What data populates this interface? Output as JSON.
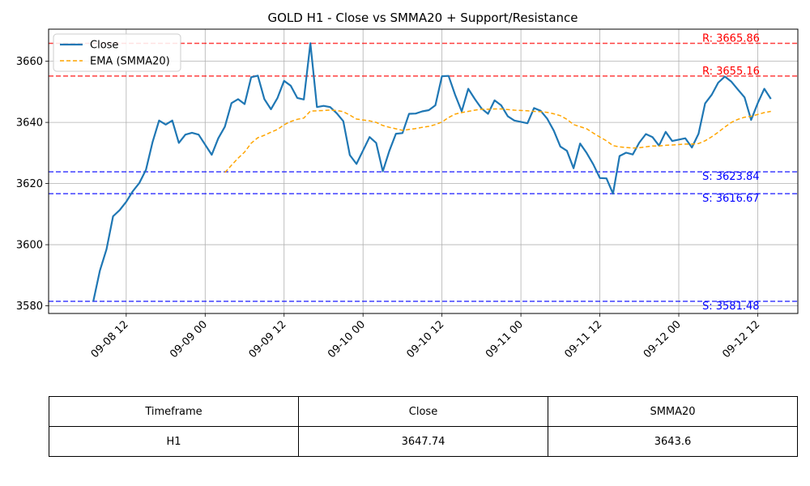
{
  "chart_data": {
    "type": "line",
    "title": "GOLD H1 - Close vs SMMA20 + Support/Resistance",
    "xlabel": "",
    "ylabel": "",
    "ylim": [
      3577.5,
      3670.5
    ],
    "xlim": [
      "2025-09-08 00:12",
      "2025-09-12 18:06"
    ],
    "grid": true,
    "legend_location": "upper-left",
    "x_ticks": [
      "09-08 12",
      "09-09 00",
      "09-09 12",
      "09-10 00",
      "09-10 12",
      "09-11 00",
      "09-11 12",
      "09-12 00",
      "09-12 12"
    ],
    "y_ticks": [
      3580,
      3600,
      3620,
      3640,
      3660
    ],
    "series": [
      {
        "name": "Close",
        "color": "#1f77b4",
        "style": "solid",
        "points": [
          [
            "2025-09-08 07:00",
            3581.5
          ],
          [
            "2025-09-08 08:00",
            3591.5
          ],
          [
            "2025-09-08 09:00",
            3598.5
          ],
          [
            "2025-09-08 10:00",
            3609.3
          ],
          [
            "2025-09-08 11:00",
            3611.3
          ],
          [
            "2025-09-08 12:00",
            3614.0
          ],
          [
            "2025-09-08 13:00",
            3617.5
          ],
          [
            "2025-09-08 14:00",
            3620.2
          ],
          [
            "2025-09-08 15:00",
            3624.5
          ],
          [
            "2025-09-08 16:00",
            3633.5
          ],
          [
            "2025-09-08 17:00",
            3640.6
          ],
          [
            "2025-09-08 18:00",
            3639.3
          ],
          [
            "2025-09-08 19:00",
            3640.6
          ],
          [
            "2025-09-08 20:00",
            3633.3
          ],
          [
            "2025-09-08 21:00",
            3636.0
          ],
          [
            "2025-09-08 22:00",
            3636.6
          ],
          [
            "2025-09-08 23:00",
            3636.0
          ],
          [
            "2025-09-09 01:00",
            3629.4
          ],
          [
            "2025-09-09 02:00",
            3634.8
          ],
          [
            "2025-09-09 03:00",
            3638.6
          ],
          [
            "2025-09-09 04:00",
            3646.3
          ],
          [
            "2025-09-09 05:00",
            3647.6
          ],
          [
            "2025-09-09 06:00",
            3646.0
          ],
          [
            "2025-09-09 07:00",
            3654.8
          ],
          [
            "2025-09-09 08:00",
            3655.3
          ],
          [
            "2025-09-09 09:00",
            3647.6
          ],
          [
            "2025-09-09 10:00",
            3644.3
          ],
          [
            "2025-09-09 11:00",
            3648.0
          ],
          [
            "2025-09-09 12:00",
            3653.6
          ],
          [
            "2025-09-09 13:00",
            3652.0
          ],
          [
            "2025-09-09 14:00",
            3648.0
          ],
          [
            "2025-09-09 15:00",
            3647.5
          ],
          [
            "2025-09-09 16:00",
            3665.9
          ],
          [
            "2025-09-09 17:00",
            3645.0
          ],
          [
            "2025-09-09 18:00",
            3645.4
          ],
          [
            "2025-09-09 19:00",
            3645.0
          ],
          [
            "2025-09-09 20:00",
            3643.0
          ],
          [
            "2025-09-09 21:00",
            3640.4
          ],
          [
            "2025-09-09 22:00",
            3629.3
          ],
          [
            "2025-09-09 23:00",
            3626.4
          ],
          [
            "2025-09-10 01:00",
            3635.2
          ],
          [
            "2025-09-10 02:00",
            3633.3
          ],
          [
            "2025-09-10 03:00",
            3624.0
          ],
          [
            "2025-09-10 04:00",
            3630.7
          ],
          [
            "2025-09-10 05:00",
            3636.3
          ],
          [
            "2025-09-10 06:00",
            3636.5
          ],
          [
            "2025-09-10 07:00",
            3642.8
          ],
          [
            "2025-09-10 08:00",
            3642.9
          ],
          [
            "2025-09-10 09:00",
            3643.6
          ],
          [
            "2025-09-10 10:00",
            3644.0
          ],
          [
            "2025-09-10 11:00",
            3645.6
          ],
          [
            "2025-09-10 12:00",
            3655.1
          ],
          [
            "2025-09-10 13:00",
            3655.2
          ],
          [
            "2025-09-10 14:00",
            3649.0
          ],
          [
            "2025-09-10 15:00",
            3643.6
          ],
          [
            "2025-09-10 16:00",
            3651.0
          ],
          [
            "2025-09-10 17:00",
            3647.6
          ],
          [
            "2025-09-10 18:00",
            3644.6
          ],
          [
            "2025-09-10 19:00",
            3642.8
          ],
          [
            "2025-09-10 20:00",
            3647.2
          ],
          [
            "2025-09-10 21:00",
            3645.6
          ],
          [
            "2025-09-10 22:00",
            3642.0
          ],
          [
            "2025-09-10 23:00",
            3640.6
          ],
          [
            "2025-09-11 01:00",
            3639.7
          ],
          [
            "2025-09-11 02:00",
            3644.7
          ],
          [
            "2025-09-11 03:00",
            3643.8
          ],
          [
            "2025-09-11 04:00",
            3641.2
          ],
          [
            "2025-09-11 05:00",
            3637.3
          ],
          [
            "2025-09-11 06:00",
            3632.1
          ],
          [
            "2025-09-11 07:00",
            3630.7
          ],
          [
            "2025-09-11 08:00",
            3625.0
          ],
          [
            "2025-09-11 09:00",
            3633.1
          ],
          [
            "2025-09-11 10:00",
            3630.0
          ],
          [
            "2025-09-11 11:00",
            3626.3
          ],
          [
            "2025-09-11 12:00",
            3621.8
          ],
          [
            "2025-09-11 13:00",
            3621.7
          ],
          [
            "2025-09-11 14:00",
            3616.7
          ],
          [
            "2025-09-11 15:00",
            3629.0
          ],
          [
            "2025-09-11 16:00",
            3630.1
          ],
          [
            "2025-09-11 17:00",
            3629.5
          ],
          [
            "2025-09-11 18:00",
            3633.4
          ],
          [
            "2025-09-11 19:00",
            3636.2
          ],
          [
            "2025-09-11 20:00",
            3635.2
          ],
          [
            "2025-09-11 21:00",
            3632.4
          ],
          [
            "2025-09-11 22:00",
            3636.9
          ],
          [
            "2025-09-11 23:00",
            3633.9
          ],
          [
            "2025-09-12 01:00",
            3634.8
          ],
          [
            "2025-09-12 02:00",
            3631.8
          ],
          [
            "2025-09-12 03:00",
            3636.3
          ],
          [
            "2025-09-12 04:00",
            3646.2
          ],
          [
            "2025-09-12 05:00",
            3649.0
          ],
          [
            "2025-09-12 06:00",
            3653.0
          ],
          [
            "2025-09-12 07:00",
            3655.0
          ],
          [
            "2025-09-12 08:00",
            3653.3
          ],
          [
            "2025-09-12 09:00",
            3650.7
          ],
          [
            "2025-09-12 10:00",
            3648.2
          ],
          [
            "2025-09-12 11:00",
            3640.8
          ],
          [
            "2025-09-12 12:00",
            3646.3
          ],
          [
            "2025-09-12 13:00",
            3651.0
          ],
          [
            "2025-09-12 14:00",
            3647.7
          ]
        ]
      },
      {
        "name": "EMA (SMMA20)",
        "color": "#ffa500",
        "style": "dashed",
        "points": [
          [
            "2025-09-09 03:00",
            3623.6
          ],
          [
            "2025-09-09 04:00",
            3626.0
          ],
          [
            "2025-09-09 05:00",
            3628.3
          ],
          [
            "2025-09-09 06:00",
            3630.3
          ],
          [
            "2025-09-09 07:00",
            3633.2
          ],
          [
            "2025-09-09 08:00",
            3635.0
          ],
          [
            "2025-09-09 09:00",
            3635.8
          ],
          [
            "2025-09-09 10:00",
            3636.8
          ],
          [
            "2025-09-09 11:00",
            3637.7
          ],
          [
            "2025-09-09 12:00",
            3639.2
          ],
          [
            "2025-09-09 13:00",
            3640.3
          ],
          [
            "2025-09-09 14:00",
            3641.0
          ],
          [
            "2025-09-09 15:00",
            3641.4
          ],
          [
            "2025-09-09 16:00",
            3643.7
          ],
          [
            "2025-09-09 17:00",
            3643.8
          ],
          [
            "2025-09-09 18:00",
            3643.9
          ],
          [
            "2025-09-09 19:00",
            3644.0
          ],
          [
            "2025-09-09 20:00",
            3643.9
          ],
          [
            "2025-09-09 21:00",
            3643.5
          ],
          [
            "2025-09-09 22:00",
            3642.4
          ],
          [
            "2025-09-09 23:00",
            3641.1
          ],
          [
            "2025-09-10 01:00",
            3640.5
          ],
          [
            "2025-09-10 02:00",
            3640.0
          ],
          [
            "2025-09-10 03:00",
            3639.0
          ],
          [
            "2025-09-10 04:00",
            3638.4
          ],
          [
            "2025-09-10 05:00",
            3637.9
          ],
          [
            "2025-09-10 06:00",
            3637.4
          ],
          [
            "2025-09-10 07:00",
            3637.7
          ],
          [
            "2025-09-10 08:00",
            3638.0
          ],
          [
            "2025-09-10 09:00",
            3638.4
          ],
          [
            "2025-09-10 10:00",
            3638.7
          ],
          [
            "2025-09-10 11:00",
            3639.3
          ],
          [
            "2025-09-10 12:00",
            3640.1
          ],
          [
            "2025-09-10 13:00",
            3641.6
          ],
          [
            "2025-09-10 14:00",
            3642.7
          ],
          [
            "2025-09-10 15:00",
            3643.2
          ],
          [
            "2025-09-10 16:00",
            3643.6
          ],
          [
            "2025-09-10 17:00",
            3644.0
          ],
          [
            "2025-09-10 18:00",
            3644.3
          ],
          [
            "2025-09-10 19:00",
            3644.3
          ],
          [
            "2025-09-10 20:00",
            3644.4
          ],
          [
            "2025-09-10 21:00",
            3644.4
          ],
          [
            "2025-09-10 22:00",
            3644.2
          ],
          [
            "2025-09-10 23:00",
            3644.0
          ],
          [
            "2025-09-11 01:00",
            3643.8
          ],
          [
            "2025-09-11 02:00",
            3643.6
          ],
          [
            "2025-09-11 03:00",
            3643.5
          ],
          [
            "2025-09-11 04:00",
            3643.3
          ],
          [
            "2025-09-11 05:00",
            3642.8
          ],
          [
            "2025-09-11 06:00",
            3642.2
          ],
          [
            "2025-09-11 07:00",
            3641.0
          ],
          [
            "2025-09-11 08:00",
            3639.3
          ],
          [
            "2025-09-11 09:00",
            3638.6
          ],
          [
            "2025-09-11 10:00",
            3637.9
          ],
          [
            "2025-09-11 11:00",
            3636.5
          ],
          [
            "2025-09-11 12:00",
            3635.2
          ],
          [
            "2025-09-11 13:00",
            3634.0
          ],
          [
            "2025-09-11 14:00",
            3632.4
          ],
          [
            "2025-09-11 15:00",
            3632.0
          ],
          [
            "2025-09-11 16:00",
            3631.8
          ],
          [
            "2025-09-11 17:00",
            3631.6
          ],
          [
            "2025-09-11 18:00",
            3631.7
          ],
          [
            "2025-09-11 19:00",
            3632.0
          ],
          [
            "2025-09-11 20:00",
            3632.3
          ],
          [
            "2025-09-11 21:00",
            3632.3
          ],
          [
            "2025-09-11 22:00",
            3632.5
          ],
          [
            "2025-09-11 23:00",
            3632.6
          ],
          [
            "2025-09-12 01:00",
            3632.9
          ],
          [
            "2025-09-12 02:00",
            3632.9
          ],
          [
            "2025-09-12 03:00",
            3633.1
          ],
          [
            "2025-09-12 04:00",
            3634.0
          ],
          [
            "2025-09-12 05:00",
            3635.3
          ],
          [
            "2025-09-12 06:00",
            3636.8
          ],
          [
            "2025-09-12 07:00",
            3638.5
          ],
          [
            "2025-09-12 08:00",
            3640.0
          ],
          [
            "2025-09-12 09:00",
            3641.0
          ],
          [
            "2025-09-12 10:00",
            3641.7
          ],
          [
            "2025-09-12 11:00",
            3642.0
          ],
          [
            "2025-09-12 12:00",
            3642.6
          ],
          [
            "2025-09-12 13:00",
            3643.2
          ],
          [
            "2025-09-12 14:00",
            3643.6
          ]
        ]
      }
    ],
    "levels": [
      {
        "kind": "resistance",
        "value": 3665.86,
        "label": "R: 3665.86",
        "color": "#ff0000"
      },
      {
        "kind": "resistance",
        "value": 3655.16,
        "label": "R: 3655.16",
        "color": "#ff0000"
      },
      {
        "kind": "support",
        "value": 3623.84,
        "label": "S: 3623.84",
        "color": "#0000ff"
      },
      {
        "kind": "support",
        "value": 3616.67,
        "label": "S: 3616.67",
        "color": "#0000ff"
      },
      {
        "kind": "support",
        "value": 3581.48,
        "label": "S: 3581.48",
        "color": "#0000ff"
      }
    ]
  },
  "table": {
    "headers": [
      "Timeframe",
      "Close",
      "SMMA20"
    ],
    "row": [
      "H1",
      "3647.74",
      "3643.6"
    ]
  }
}
